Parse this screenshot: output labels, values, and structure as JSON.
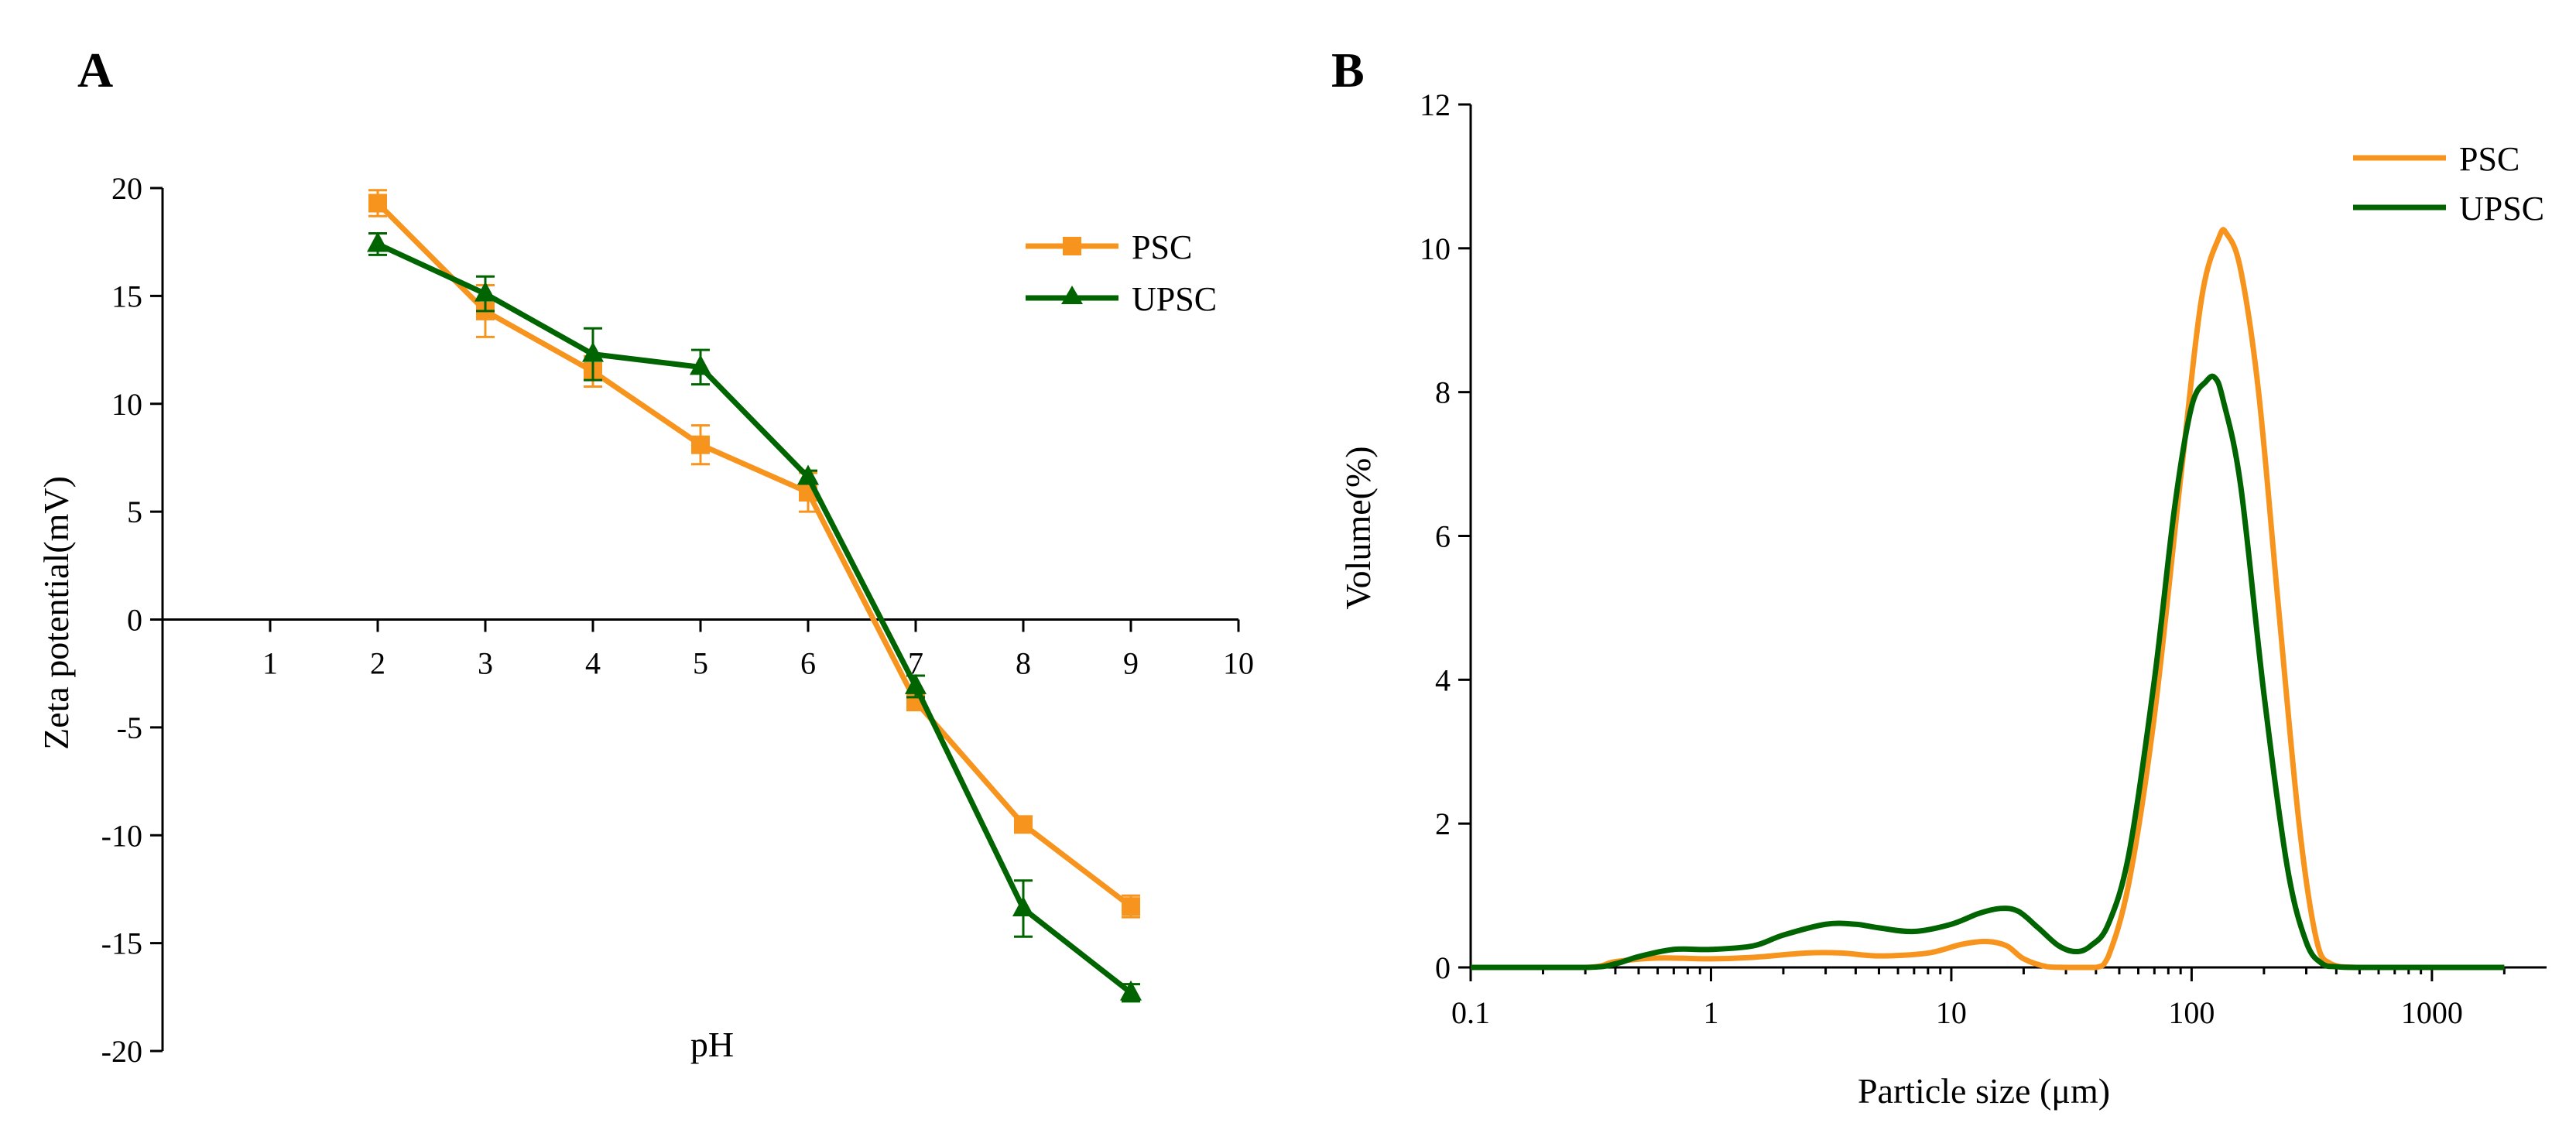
{
  "colors": {
    "psc": "#F7941D",
    "upsc": "#006400"
  },
  "chart_data": [
    {
      "panel": "A",
      "type": "line",
      "xlabel": "pH",
      "ylabel": "Zeta potential(mV)",
      "xlim": [
        0,
        10
      ],
      "ylim": [
        -20,
        20
      ],
      "xticks": [
        1,
        2,
        3,
        4,
        5,
        6,
        7,
        8,
        9,
        10
      ],
      "yticks": [
        20,
        15,
        10,
        5,
        0,
        -5,
        -10,
        -15,
        -20
      ],
      "legend_position": "top-right",
      "series": [
        {
          "name": "PSC",
          "marker": "square",
          "x": [
            2,
            3,
            4,
            5,
            6,
            7,
            8,
            9
          ],
          "y": [
            19.3,
            14.3,
            11.5,
            8.1,
            5.9,
            -3.8,
            -9.5,
            -13.3
          ],
          "err": [
            0.6,
            1.2,
            0.7,
            0.9,
            0.9,
            0.4,
            0.3,
            0.5
          ]
        },
        {
          "name": "UPSC",
          "marker": "triangle",
          "x": [
            2,
            3,
            4,
            5,
            6,
            7,
            8,
            9
          ],
          "y": [
            17.4,
            15.1,
            12.3,
            11.7,
            6.6,
            -3.1,
            -13.4,
            -17.3
          ],
          "err": [
            0.5,
            0.8,
            1.2,
            0.8,
            0.3,
            0.5,
            1.3,
            0.4
          ]
        }
      ]
    },
    {
      "panel": "B",
      "type": "line",
      "xscale": "log",
      "xlabel": "Particle size (μm)",
      "ylabel": "Volume(%)",
      "xlim": [
        0.1,
        3000
      ],
      "ylim": [
        0,
        12
      ],
      "xticks": [
        0.1,
        1,
        10,
        100,
        1000
      ],
      "xticklabels": [
        "0.1",
        "1",
        "10",
        "100",
        "1000"
      ],
      "yticks": [
        0,
        2,
        4,
        6,
        8,
        10,
        12
      ],
      "legend_position": "top-right",
      "series": [
        {
          "name": "PSC",
          "x": [
            0.1,
            0.3,
            0.4,
            0.6,
            1.0,
            1.5,
            2.5,
            3.5,
            5.0,
            8.0,
            11,
            14,
            17,
            20,
            25,
            30,
            40,
            45,
            55,
            70,
            90,
            110,
            130,
            140,
            160,
            190,
            230,
            280,
            330,
            380,
            500,
            1000,
            2000
          ],
          "y": [
            0,
            0,
            0.08,
            0.13,
            0.12,
            0.14,
            0.2,
            0.2,
            0.16,
            0.2,
            0.32,
            0.36,
            0.3,
            0.12,
            0.01,
            0,
            0,
            0.15,
            1.2,
            3.5,
            6.8,
            9.3,
            10.15,
            10.2,
            9.7,
            8.0,
            5.0,
            2.0,
            0.4,
            0.05,
            0,
            0,
            0
          ]
        },
        {
          "name": "UPSC",
          "x": [
            0.1,
            0.3,
            0.4,
            0.5,
            0.7,
            1.0,
            1.5,
            2.0,
            3.0,
            4.0,
            5.0,
            7.0,
            10,
            13,
            16,
            19,
            23,
            28,
            33,
            38,
            45,
            55,
            70,
            85,
            100,
            115,
            125,
            135,
            160,
            200,
            250,
            300,
            350,
            400,
            500,
            1000,
            2000
          ],
          "y": [
            0,
            0,
            0.05,
            0.15,
            0.25,
            0.25,
            0.3,
            0.45,
            0.6,
            0.6,
            0.55,
            0.5,
            0.6,
            0.75,
            0.82,
            0.78,
            0.55,
            0.3,
            0.22,
            0.3,
            0.6,
            1.6,
            4.0,
            6.4,
            7.8,
            8.15,
            8.2,
            7.9,
            6.7,
            3.8,
            1.4,
            0.35,
            0.05,
            0.01,
            0,
            0,
            0
          ]
        }
      ]
    }
  ]
}
